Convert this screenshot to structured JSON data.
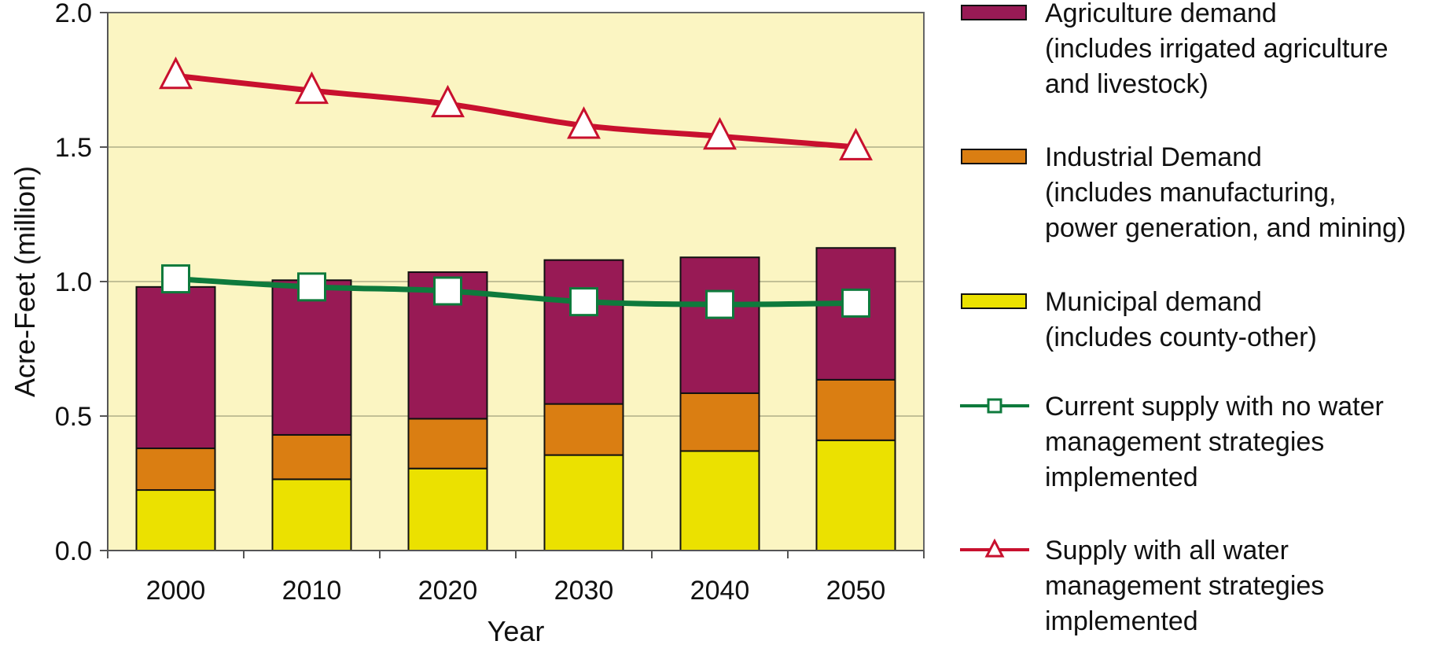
{
  "chart_data": {
    "type": "bar",
    "stacked": true,
    "categories": [
      "2000",
      "2010",
      "2020",
      "2030",
      "2040",
      "2050"
    ],
    "xlabel": "Year",
    "ylabel": "Acre-Feet (million)",
    "ylim": [
      0,
      2.0
    ],
    "yticks": [
      0.0,
      0.5,
      1.0,
      1.5,
      2.0
    ],
    "ytick_labels": [
      "0.0",
      "0.5",
      "1.0",
      "1.5",
      "2.0"
    ],
    "grid": true,
    "plot_background": "#FBF5C2",
    "legend_position": "right",
    "bar_series": [
      {
        "name": "Municipal demand",
        "legend_lines": [
          "Municipal demand",
          "(includes county-other)"
        ],
        "color": "#EBE100",
        "values": [
          0.225,
          0.265,
          0.305,
          0.355,
          0.37,
          0.41
        ]
      },
      {
        "name": "Industrial Demand",
        "legend_lines": [
          "Industrial Demand",
          "(includes manufacturing,",
          "power generation, and mining)"
        ],
        "color": "#DA7E12",
        "values": [
          0.155,
          0.165,
          0.185,
          0.19,
          0.215,
          0.225
        ]
      },
      {
        "name": "Agriculture demand",
        "legend_lines": [
          "Agriculture demand",
          "(includes irrigated agriculture",
          "and livestock)"
        ],
        "color": "#981A55",
        "values": [
          0.6,
          0.575,
          0.545,
          0.535,
          0.505,
          0.49
        ]
      }
    ],
    "line_series": [
      {
        "name": "Current supply with no water management strategies implemented",
        "legend_lines": [
          "Current supply with no water",
          "management strategies",
          "implemented"
        ],
        "color": "#0E7A3C",
        "marker": "square",
        "values": [
          1.01,
          0.98,
          0.965,
          0.925,
          0.915,
          0.92
        ]
      },
      {
        "name": "Supply with all water management strategies implemented",
        "legend_lines": [
          "Supply with all water",
          "management strategies",
          "implemented"
        ],
        "color": "#C8102E",
        "marker": "triangle",
        "values": [
          1.765,
          1.71,
          1.66,
          1.58,
          1.54,
          1.5
        ]
      }
    ],
    "legend_order": [
      "Agriculture demand",
      "Industrial Demand",
      "Municipal demand",
      "Current supply with no water management strategies implemented",
      "Supply with all water management strategies implemented"
    ]
  }
}
